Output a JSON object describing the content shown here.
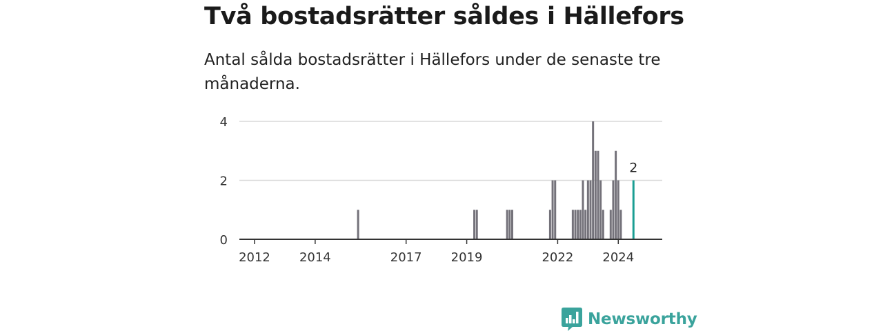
{
  "header": {
    "title": "Två bostadsrätter såldes i Hällefors",
    "subtitle": "Antal sålda bostadsrätter i Hällefors under de senaste tre månaderna."
  },
  "brand": {
    "name": "Newsworthy",
    "color": "#3aa39c"
  },
  "chart_data": {
    "type": "bar",
    "x_axis": {
      "type": "time",
      "tick_labels": [
        "2012",
        "2014",
        "2017",
        "2019",
        "2022",
        "2024"
      ]
    },
    "y_axis": {
      "ylim": [
        0,
        4
      ],
      "ticks": [
        0,
        2,
        4
      ]
    },
    "grid": true,
    "colors": {
      "bars": "#74727a",
      "highlight": "#1a9e93",
      "gridline": "#d9d9d9",
      "axis": "#333333"
    },
    "series": [
      {
        "values": [
          {
            "x": "2015-06",
            "y": 1
          },
          {
            "x": "2019-04",
            "y": 1
          },
          {
            "x": "2019-05",
            "y": 1
          },
          {
            "x": "2020-05",
            "y": 1
          },
          {
            "x": "2020-06",
            "y": 1
          },
          {
            "x": "2020-07",
            "y": 1
          },
          {
            "x": "2021-10",
            "y": 1
          },
          {
            "x": "2021-11",
            "y": 2
          },
          {
            "x": "2021-12",
            "y": 2
          },
          {
            "x": "2022-07",
            "y": 1
          },
          {
            "x": "2022-08",
            "y": 1
          },
          {
            "x": "2022-09",
            "y": 1
          },
          {
            "x": "2022-10",
            "y": 1
          },
          {
            "x": "2022-11",
            "y": 2
          },
          {
            "x": "2022-12",
            "y": 1
          },
          {
            "x": "2023-01",
            "y": 2
          },
          {
            "x": "2023-02",
            "y": 2
          },
          {
            "x": "2023-03",
            "y": 4
          },
          {
            "x": "2023-04",
            "y": 3
          },
          {
            "x": "2023-05",
            "y": 3
          },
          {
            "x": "2023-06",
            "y": 2
          },
          {
            "x": "2023-07",
            "y": 1
          },
          {
            "x": "2023-10",
            "y": 1
          },
          {
            "x": "2023-11",
            "y": 2
          },
          {
            "x": "2023-12",
            "y": 3
          },
          {
            "x": "2024-01",
            "y": 2
          },
          {
            "x": "2024-02",
            "y": 1
          }
        ]
      }
    ],
    "highlight": {
      "x": "2024-07",
      "y": 2,
      "label": "2"
    }
  }
}
